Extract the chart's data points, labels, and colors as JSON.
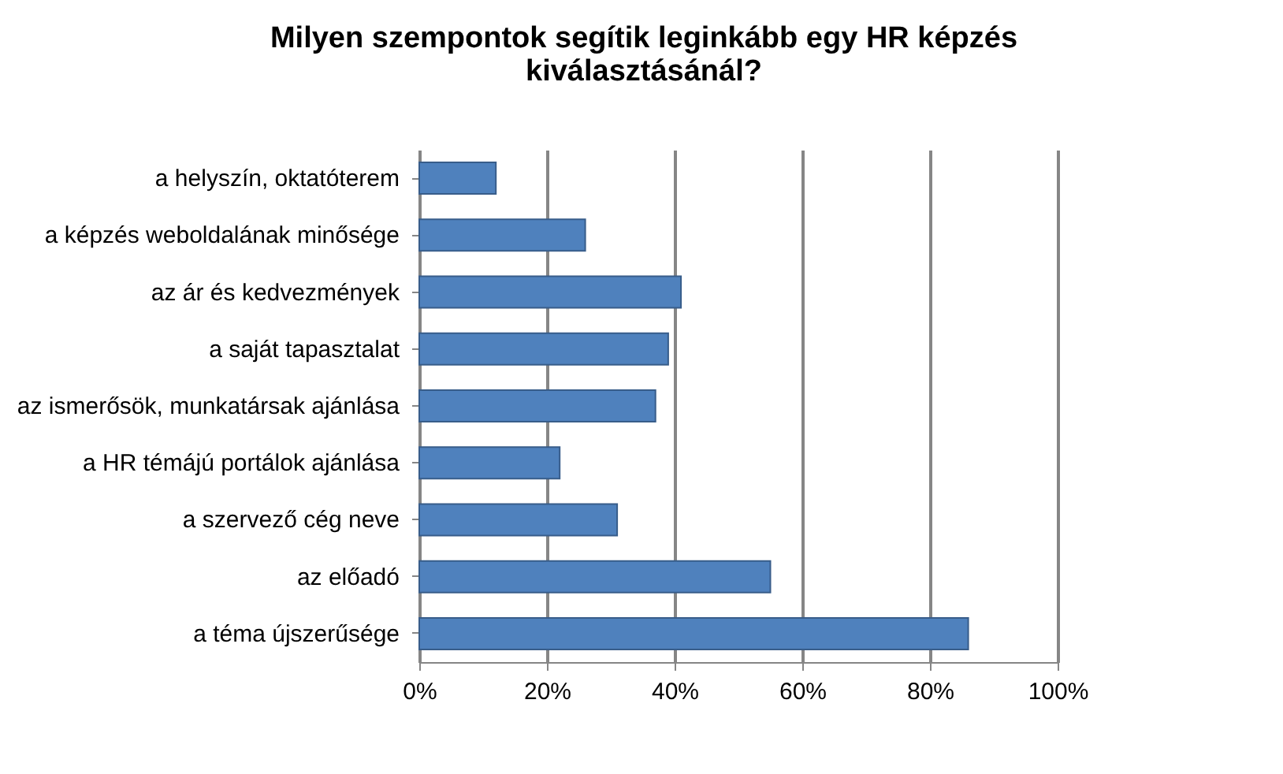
{
  "chart_data": {
    "type": "bar",
    "orientation": "horizontal",
    "title": [
      "Milyen szempontok segítik leginkább egy HR képzés",
      "kiválasztásánál?"
    ],
    "categories": [
      "a helyszín, oktatóterem",
      "a képzés weboldalának minősége",
      "az ár és kedvezmények",
      "a saját tapasztalat",
      "az ismerősök, munkatársak ajánlása",
      "a HR témájú portálok ajánlása",
      "a szervező cég neve",
      "az előadó",
      "a téma újszerűsége"
    ],
    "values": [
      12,
      26,
      41,
      39,
      37,
      22,
      31,
      55,
      86
    ],
    "color": "#4f81bd",
    "xlim": [
      0,
      100
    ],
    "xticks": [
      {
        "value": 0,
        "label": "0%"
      },
      {
        "value": 20,
        "label": "20%"
      },
      {
        "value": 40,
        "label": "40%"
      },
      {
        "value": 60,
        "label": "60%"
      },
      {
        "value": 80,
        "label": "80%"
      },
      {
        "value": 100,
        "label": "100%"
      }
    ],
    "grid": "x"
  }
}
